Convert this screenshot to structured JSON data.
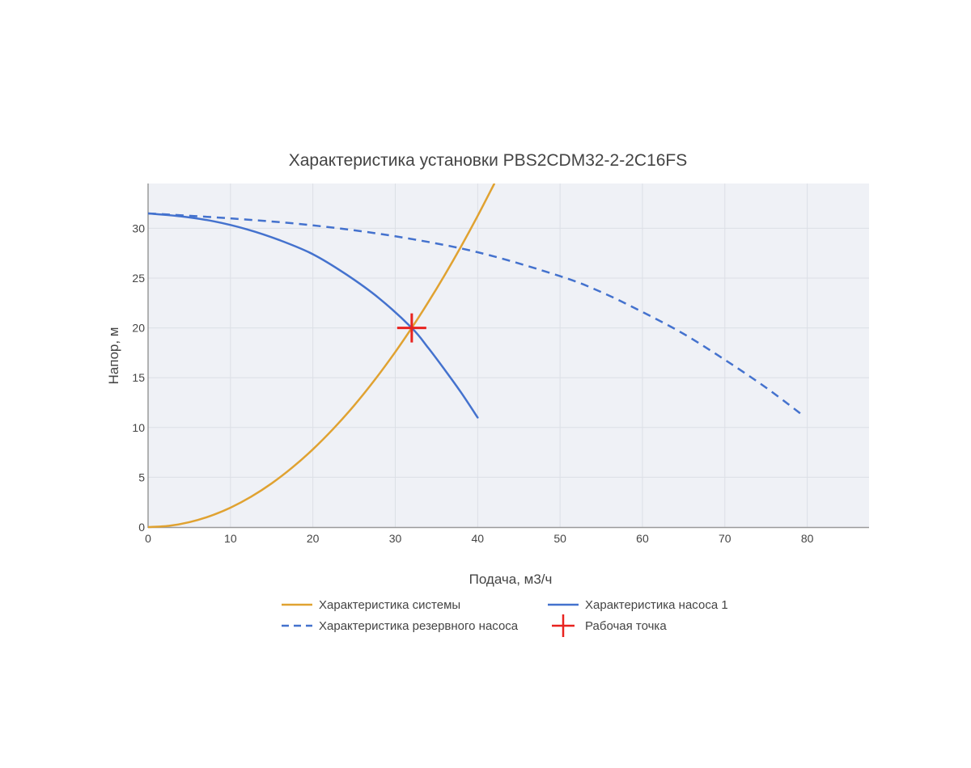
{
  "chart_data": {
    "type": "line",
    "title": "Характеристика установки PBS2CDM32-2-2C16FS",
    "xlabel": "Подача, м3/ч",
    "ylabel": "Напор, м",
    "xlim": [
      0,
      87.5
    ],
    "ylim": [
      0,
      34.5
    ],
    "x_ticks": [
      0,
      10,
      20,
      30,
      40,
      50,
      60,
      70,
      80
    ],
    "y_ticks": [
      0,
      5,
      10,
      15,
      20,
      25,
      30
    ],
    "grid": true,
    "legend_position": "bottom",
    "plot_background": "#eff1f6",
    "series": [
      {
        "name": "Характеристика системы",
        "color": "#e0a231",
        "dash": "solid",
        "x": [
          0,
          2.5,
          5,
          7.5,
          10,
          12.5,
          15,
          17.5,
          20,
          22.5,
          25,
          27.5,
          30,
          32,
          34,
          36,
          38,
          40,
          42
        ],
        "y": [
          0,
          0.12,
          0.49,
          1.1,
          1.95,
          3.05,
          4.39,
          5.98,
          7.81,
          9.89,
          12.2,
          14.77,
          17.58,
          20.0,
          22.58,
          25.31,
          28.2,
          31.25,
          34.45
        ]
      },
      {
        "name": "Характеристика насоса 1",
        "color": "#4472ce",
        "dash": "solid",
        "x": [
          0,
          4,
          8,
          12,
          16,
          20,
          24,
          28,
          32,
          34,
          36,
          38,
          40
        ],
        "y": [
          31.5,
          31.2,
          30.7,
          29.9,
          28.8,
          27.4,
          25.4,
          23.0,
          20.0,
          18.0,
          15.8,
          13.5,
          11.0
        ]
      },
      {
        "name": "Характеристика резервного насоса",
        "color": "#4472ce",
        "dash": "dash",
        "x": [
          0,
          10,
          20,
          30,
          40,
          50,
          55,
          60,
          65,
          70,
          75,
          79.5
        ],
        "y": [
          31.5,
          31.0,
          30.3,
          29.2,
          27.6,
          25.2,
          23.6,
          21.6,
          19.4,
          16.8,
          14.0,
          11.2
        ]
      }
    ],
    "markers": [
      {
        "name": "Рабочая точка",
        "color": "#e8231f",
        "symbol": "cross",
        "x": 32,
        "y": 20
      }
    ]
  }
}
